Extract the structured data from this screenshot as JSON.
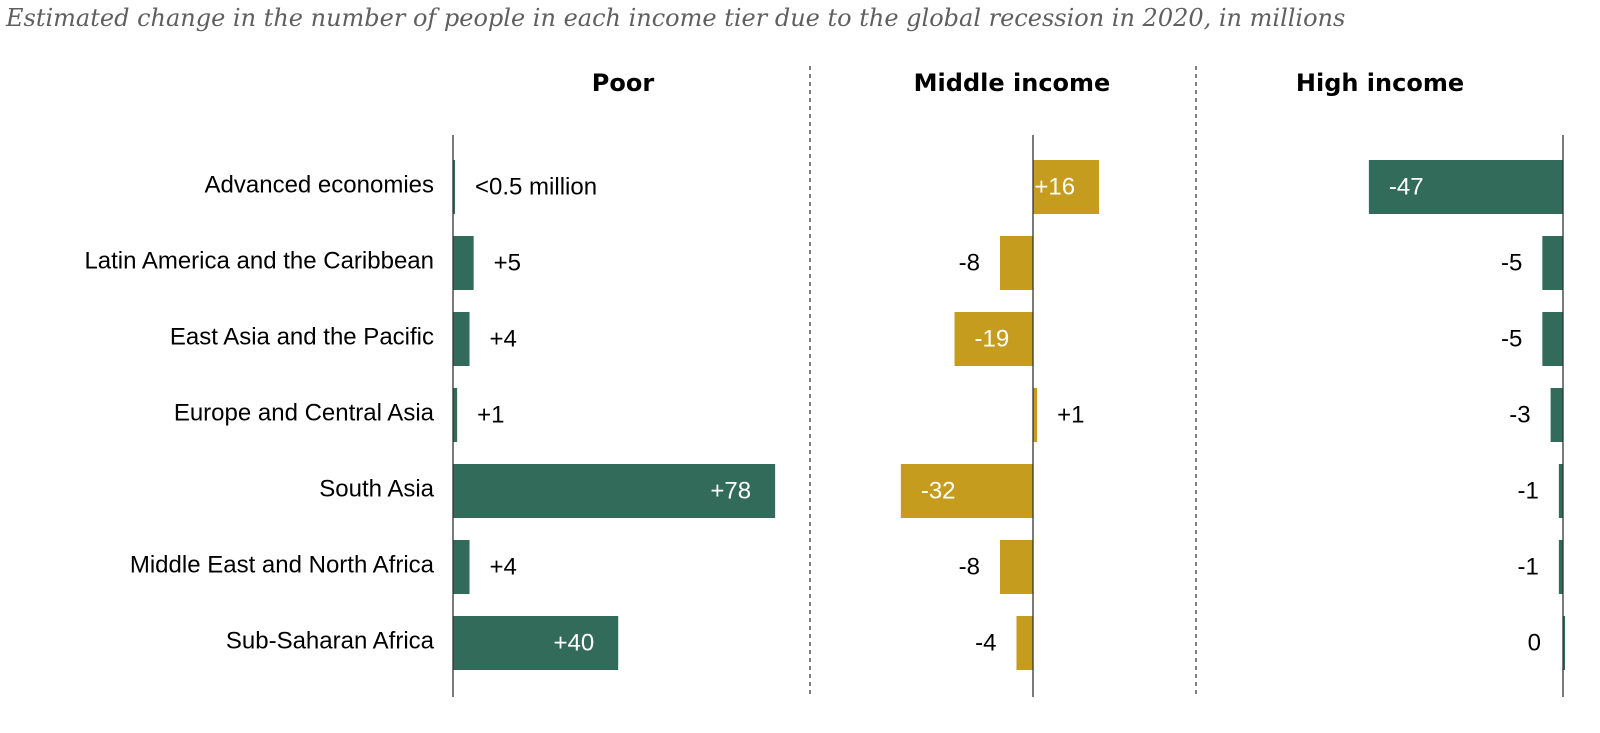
{
  "chart_data": {
    "type": "bar",
    "orientation": "horizontal",
    "subtitle": "Estimated change in the number of people in each income tier due to the global recession in 2020, in millions",
    "categories": [
      "Advanced economies",
      "Latin America and the Caribbean",
      "East Asia and the Pacific",
      "Europe and Central Asia",
      "South Asia",
      "Middle East and North Africa",
      "Sub-Saharan Africa"
    ],
    "series": [
      {
        "name": "Poor",
        "color": "#336b5a",
        "values": [
          0,
          5,
          4,
          1,
          78,
          4,
          40
        ],
        "labels": [
          "<0.5 million",
          "+5",
          "+4",
          "+1",
          "+78",
          "+4",
          "+40"
        ]
      },
      {
        "name": "Middle income",
        "color": "#c69c1f",
        "values": [
          16,
          -8,
          -19,
          1,
          -32,
          -8,
          -4
        ],
        "labels": [
          "+16",
          "-8",
          "-19",
          "+1",
          "-32",
          "-8",
          "-4"
        ]
      },
      {
        "name": "High income",
        "color": "#336b5a",
        "values": [
          -47,
          -5,
          -5,
          -3,
          -1,
          -1,
          0
        ],
        "labels": [
          "-47",
          "-5",
          "-5",
          "-3",
          "-1",
          "-1",
          "0"
        ]
      }
    ],
    "grid": false,
    "legend": "none"
  }
}
